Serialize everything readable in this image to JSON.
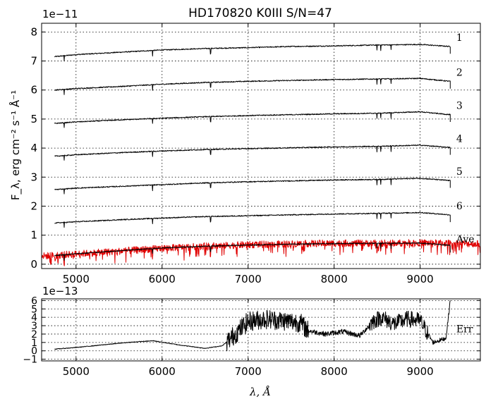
{
  "chart_data": [
    {
      "type": "line",
      "title": "HD170820  K0III  S/N=47",
      "ylabel": "F_λ, erg cm⁻² s⁻¹ Å⁻¹",
      "xlabel": "",
      "offset_label": "1e−11",
      "xlim": [
        4600,
        9700
      ],
      "ylim": [
        -0.15,
        8.3
      ],
      "grid": true,
      "x_ticks": [
        5000,
        6000,
        7000,
        8000,
        9000
      ],
      "x_tick_labels": [
        "5000",
        "6000",
        "7000",
        "8000",
        "9000"
      ],
      "y_ticks": [
        0,
        1,
        2,
        3,
        4,
        5,
        6,
        7,
        8
      ],
      "y_tick_labels": [
        "0",
        "1",
        "2",
        "3",
        "4",
        "5",
        "6",
        "7",
        "8"
      ],
      "absorption_lines": [
        4862,
        5890,
        6563,
        8498,
        8542,
        8662
      ],
      "series": [
        {
          "name": "1",
          "color": "#000000",
          "x": [
            4750,
            5000,
            5500,
            6000,
            6500,
            7000,
            7500,
            8000,
            8500,
            9000,
            9350
          ],
          "y": [
            7.15,
            7.22,
            7.3,
            7.38,
            7.43,
            7.46,
            7.5,
            7.52,
            7.55,
            7.57,
            7.5
          ]
        },
        {
          "name": "2",
          "color": "#000000",
          "x": [
            4750,
            5000,
            5500,
            6000,
            6500,
            7000,
            7500,
            8000,
            8500,
            9000,
            9350
          ],
          "y": [
            6.0,
            6.05,
            6.12,
            6.2,
            6.26,
            6.3,
            6.33,
            6.36,
            6.38,
            6.4,
            6.3
          ]
        },
        {
          "name": "3",
          "color": "#000000",
          "x": [
            4750,
            5000,
            5500,
            6000,
            6500,
            7000,
            7500,
            8000,
            8500,
            9000,
            9350
          ],
          "y": [
            4.85,
            4.9,
            4.97,
            5.03,
            5.08,
            5.12,
            5.15,
            5.18,
            5.2,
            5.25,
            5.15
          ]
        },
        {
          "name": "4",
          "color": "#000000",
          "x": [
            4750,
            5000,
            5500,
            6000,
            6500,
            7000,
            7500,
            8000,
            8500,
            9000,
            9350
          ],
          "y": [
            3.72,
            3.77,
            3.84,
            3.9,
            3.95,
            3.98,
            4.01,
            4.04,
            4.06,
            4.1,
            4.02
          ]
        },
        {
          "name": "5",
          "color": "#000000",
          "x": [
            4750,
            5000,
            5500,
            6000,
            6500,
            7000,
            7500,
            8000,
            8500,
            9000,
            9350
          ],
          "y": [
            2.57,
            2.62,
            2.68,
            2.74,
            2.8,
            2.84,
            2.87,
            2.9,
            2.92,
            2.96,
            2.88
          ]
        },
        {
          "name": "6",
          "color": "#000000",
          "x": [
            4750,
            5000,
            5500,
            6000,
            6500,
            7000,
            7500,
            8000,
            8500,
            9000,
            9350
          ],
          "y": [
            1.42,
            1.46,
            1.53,
            1.59,
            1.64,
            1.67,
            1.7,
            1.73,
            1.75,
            1.78,
            1.7
          ]
        },
        {
          "name": "Ave",
          "color": "#e00000",
          "x": [
            4600,
            5000,
            5500,
            6000,
            6500,
            7000,
            7500,
            8000,
            8500,
            9000,
            9700
          ],
          "y": [
            0.28,
            0.35,
            0.45,
            0.55,
            0.62,
            0.67,
            0.7,
            0.72,
            0.72,
            0.74,
            0.7
          ]
        },
        {
          "name": "Ave-black",
          "color": "#000000",
          "x": [
            4750,
            5000,
            5500,
            6000,
            6500,
            7000,
            7500,
            8000,
            8500,
            9000,
            9350
          ],
          "y": [
            0.3,
            0.36,
            0.46,
            0.56,
            0.62,
            0.66,
            0.69,
            0.71,
            0.72,
            0.73,
            0.65
          ]
        }
      ],
      "labels": [
        "1",
        "2",
        "3",
        "4",
        "5",
        "6",
        "Ave"
      ]
    },
    {
      "type": "line",
      "xlabel": "λ, Å",
      "ylabel": "",
      "offset_label": "1e−13",
      "xlim": [
        4600,
        9700
      ],
      "ylim": [
        -1.2,
        6.2
      ],
      "grid": true,
      "x_ticks": [
        5000,
        6000,
        7000,
        8000,
        9000
      ],
      "x_tick_labels": [
        "5000",
        "6000",
        "7000",
        "8000",
        "9000"
      ],
      "y_ticks": [
        -1,
        0,
        1,
        2,
        3,
        4,
        5,
        6
      ],
      "y_tick_labels": [
        "−1",
        "0",
        "1",
        "2",
        "3",
        "4",
        "5",
        "6"
      ],
      "series": [
        {
          "name": "Err",
          "color": "#000000",
          "x": [
            4750,
            5000,
            5300,
            5600,
            5900,
            6200,
            6500,
            6700,
            6800,
            7000,
            7200,
            7400,
            7600,
            7700,
            7900,
            8100,
            8300,
            8450,
            8550,
            8700,
            8850,
            9000,
            9150,
            9300,
            9350
          ],
          "y": [
            0.2,
            0.4,
            0.7,
            1.0,
            1.2,
            0.7,
            0.3,
            0.6,
            1.5,
            3.5,
            3.8,
            3.6,
            3.4,
            2.4,
            2.0,
            2.3,
            1.8,
            3.5,
            4.0,
            3.2,
            3.8,
            3.6,
            1.0,
            1.5,
            6.0
          ]
        }
      ],
      "labels": [
        "Err"
      ]
    }
  ]
}
